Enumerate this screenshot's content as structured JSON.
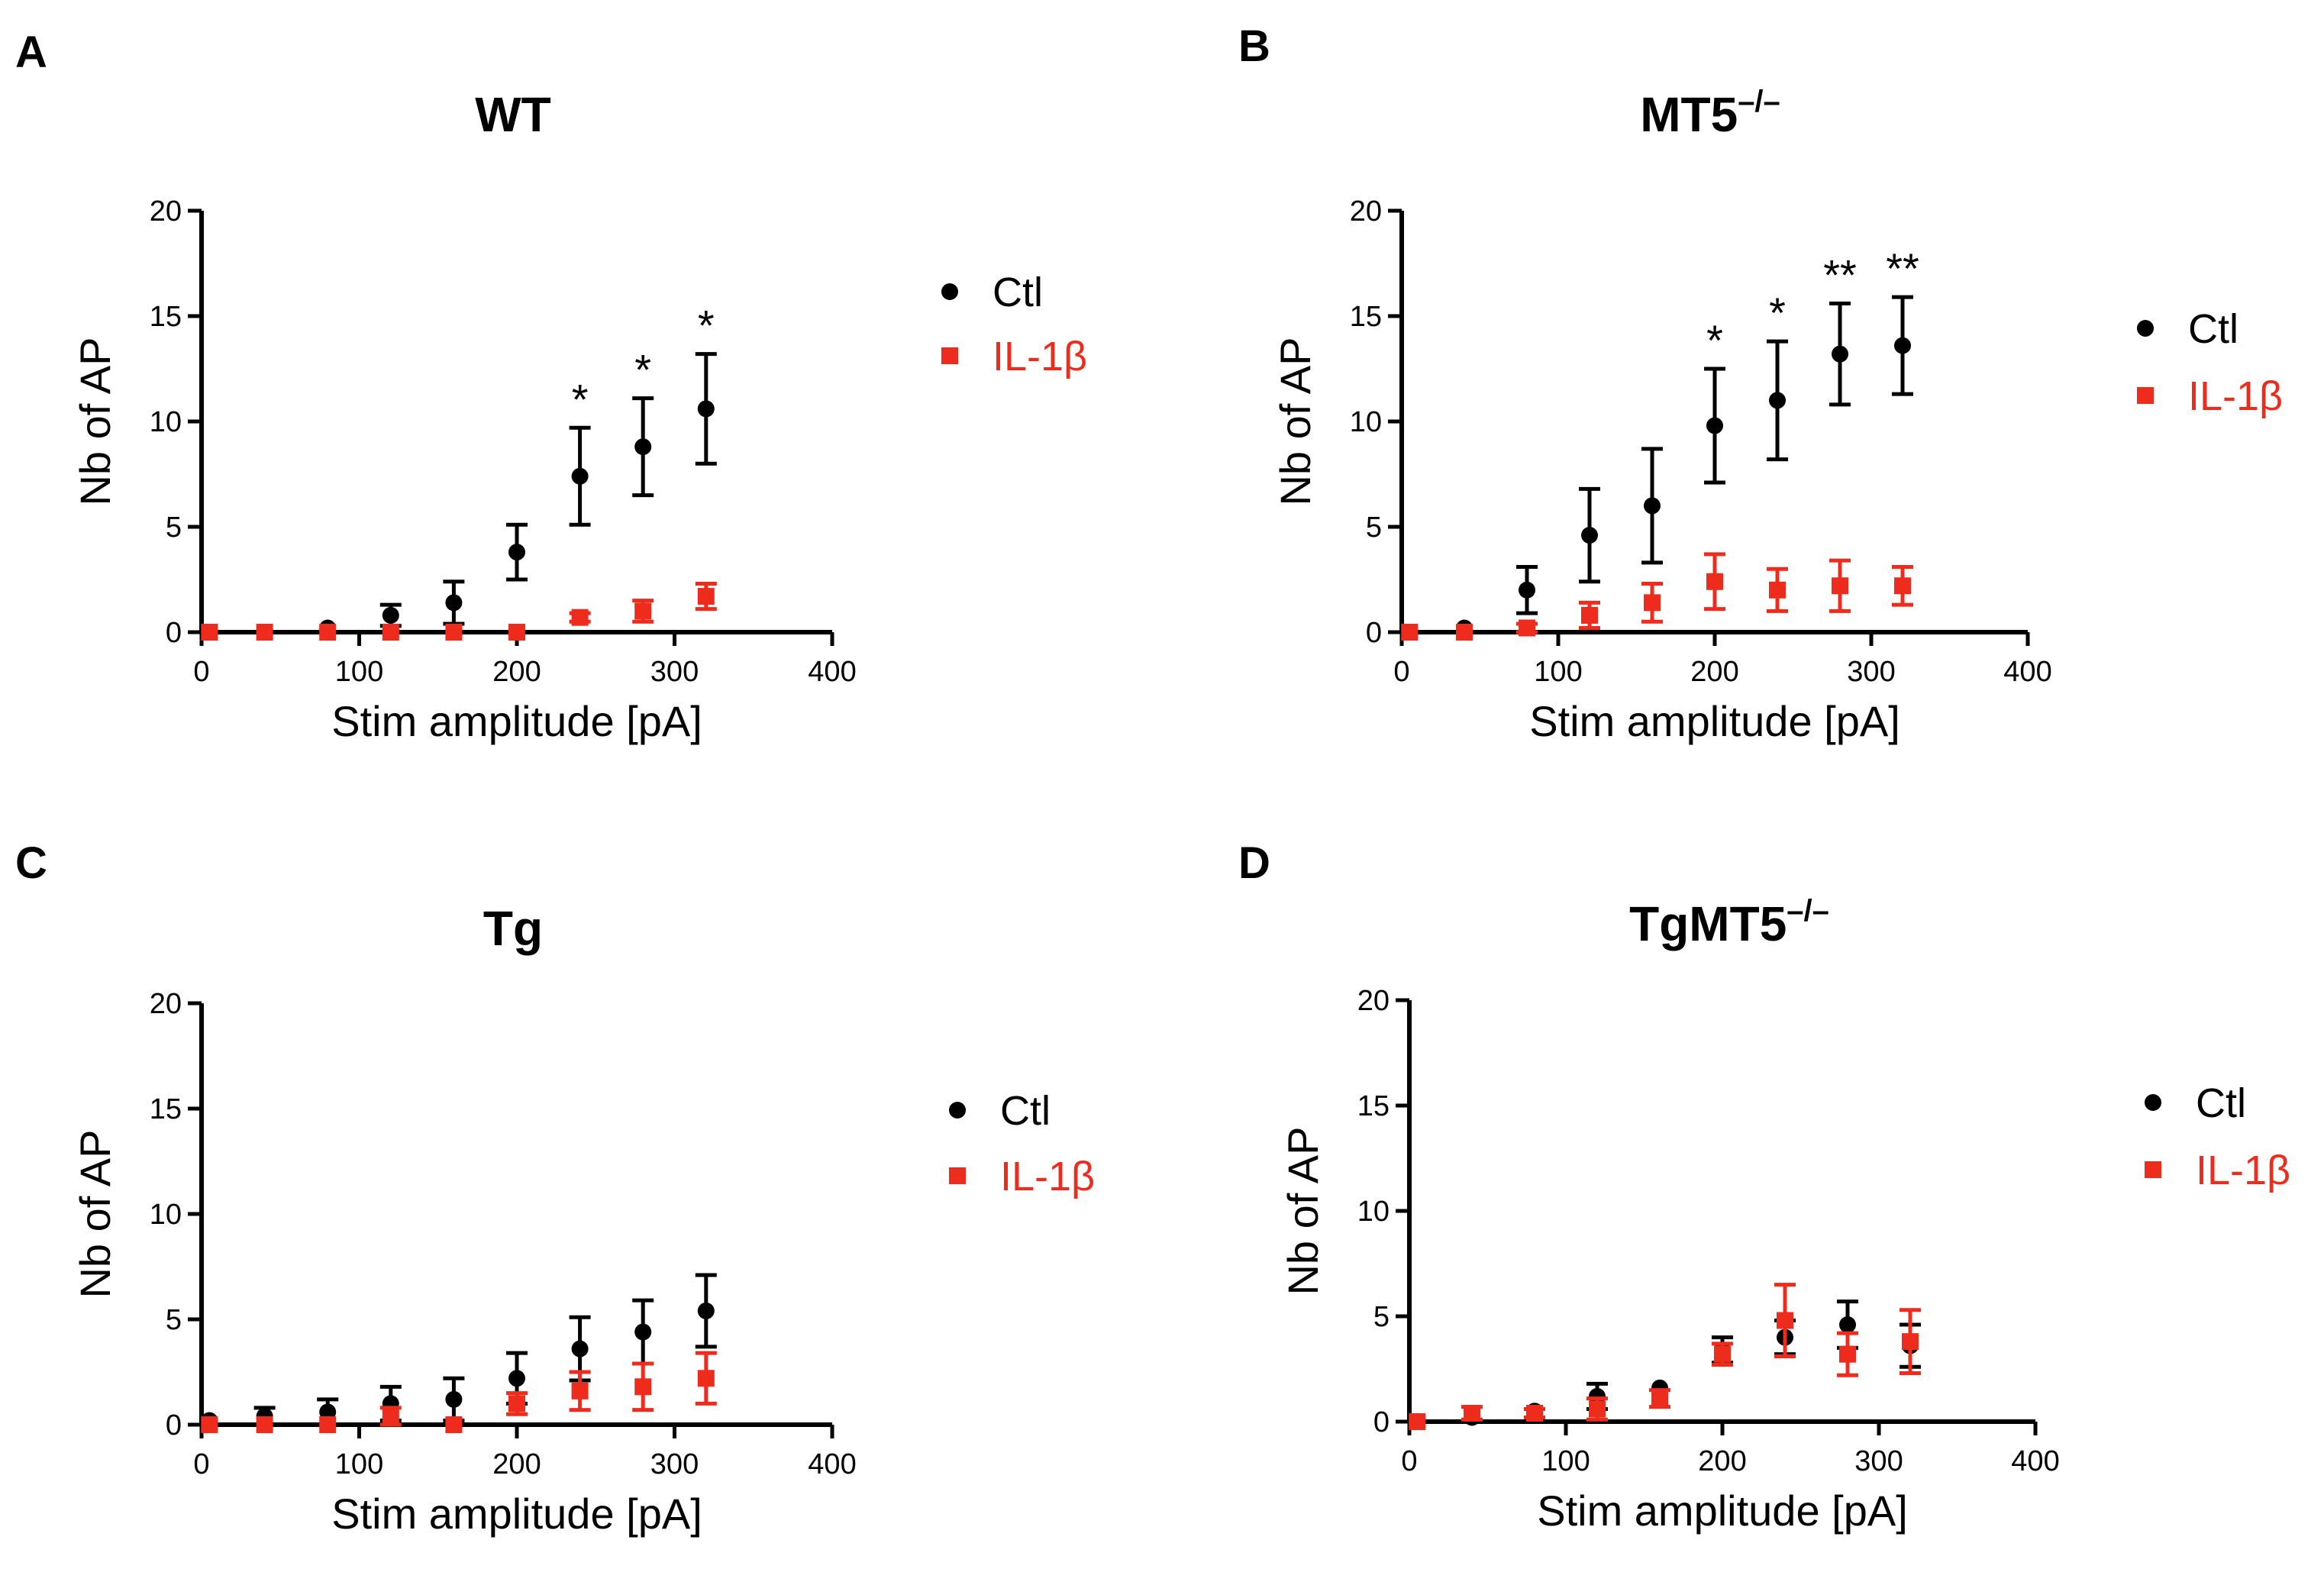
{
  "colors": {
    "ctl": "#000000",
    "il1b": "#ee2c1d"
  },
  "chart_data": [
    {
      "panel_label": "A",
      "type": "scatter",
      "title": "WT",
      "title_superscript": "",
      "xlabel": "Stim amplitude [pA]",
      "ylabel": "Nb of AP",
      "xlim": [
        0,
        400
      ],
      "ylim": [
        0,
        20
      ],
      "xticks": [
        "0",
        "100",
        "200",
        "300",
        "400"
      ],
      "yticks": [
        "0",
        "5",
        "10",
        "15",
        "20"
      ],
      "legend": [
        "Ctl",
        "IL-1β"
      ],
      "legend_position": "right",
      "series": [
        {
          "name": "Ctl",
          "marker": "circle",
          "x": [
            5,
            40,
            80,
            120,
            160,
            200,
            240,
            280,
            320
          ],
          "y": [
            0,
            0,
            0.2,
            0.8,
            1.4,
            3.8,
            7.4,
            8.8,
            10.6
          ],
          "err": [
            0,
            0,
            0,
            0.5,
            1.0,
            1.3,
            2.3,
            2.3,
            2.6
          ]
        },
        {
          "name": "IL-1β",
          "marker": "square",
          "x": [
            5,
            40,
            80,
            120,
            160,
            200,
            240,
            280,
            320
          ],
          "y": [
            0,
            0,
            0,
            0,
            0,
            0,
            0.7,
            1.0,
            1.7
          ],
          "err": [
            0,
            0,
            0,
            0,
            0,
            0,
            0.2,
            0.5,
            0.6
          ]
        }
      ],
      "annotations": [
        {
          "x": 240,
          "text": "*"
        },
        {
          "x": 280,
          "text": "*"
        },
        {
          "x": 320,
          "text": "*"
        }
      ]
    },
    {
      "panel_label": "B",
      "type": "scatter",
      "title": "MT5",
      "title_superscript": "–/–",
      "xlabel": "Stim amplitude [pA]",
      "ylabel": "Nb of AP",
      "xlim": [
        0,
        400
      ],
      "ylim": [
        0,
        20
      ],
      "xticks": [
        "0",
        "100",
        "200",
        "300",
        "400"
      ],
      "yticks": [
        "0",
        "5",
        "10",
        "15",
        "20"
      ],
      "legend": [
        "Ctl",
        "IL-1β"
      ],
      "legend_position": "right",
      "series": [
        {
          "name": "Ctl",
          "marker": "circle",
          "x": [
            5,
            40,
            80,
            120,
            160,
            200,
            240,
            280,
            320
          ],
          "y": [
            0,
            0.2,
            2.0,
            4.6,
            6.0,
            9.8,
            11.0,
            13.2,
            13.6
          ],
          "err": [
            0,
            0,
            1.1,
            2.2,
            2.7,
            2.7,
            2.8,
            2.4,
            2.3
          ]
        },
        {
          "name": "IL-1β",
          "marker": "square",
          "x": [
            5,
            40,
            80,
            120,
            160,
            200,
            240,
            280,
            320
          ],
          "y": [
            0,
            0,
            0.2,
            0.8,
            1.4,
            2.4,
            2.0,
            2.2,
            2.2
          ],
          "err": [
            0,
            0,
            0.2,
            0.6,
            0.9,
            1.3,
            1.0,
            1.2,
            0.9
          ]
        }
      ],
      "annotations": [
        {
          "x": 200,
          "text": "*"
        },
        {
          "x": 240,
          "text": "*"
        },
        {
          "x": 280,
          "text": "**"
        },
        {
          "x": 320,
          "text": "**"
        }
      ]
    },
    {
      "panel_label": "C",
      "type": "scatter",
      "title": "Tg",
      "title_superscript": "",
      "xlabel": "Stim amplitude [pA]",
      "ylabel": "Nb of AP",
      "xlim": [
        0,
        400
      ],
      "ylim": [
        0,
        20
      ],
      "xticks": [
        "0",
        "100",
        "200",
        "300",
        "400"
      ],
      "yticks": [
        "0",
        "5",
        "10",
        "15",
        "20"
      ],
      "legend": [
        "Ctl",
        "IL-1β"
      ],
      "legend_position": "right",
      "series": [
        {
          "name": "Ctl",
          "marker": "circle",
          "x": [
            5,
            40,
            80,
            120,
            160,
            200,
            240,
            280,
            320
          ],
          "y": [
            0.2,
            0.4,
            0.6,
            1.0,
            1.2,
            2.2,
            3.6,
            4.4,
            5.4
          ],
          "err": [
            0,
            0.4,
            0.6,
            0.8,
            1.0,
            1.2,
            1.5,
            1.5,
            1.7
          ]
        },
        {
          "name": "IL-1β",
          "marker": "square",
          "x": [
            5,
            40,
            80,
            120,
            160,
            200,
            240,
            280,
            320
          ],
          "y": [
            0,
            0,
            0,
            0.4,
            0,
            1.0,
            1.6,
            1.8,
            2.2
          ],
          "err": [
            0,
            0,
            0,
            0.4,
            0,
            0.5,
            0.9,
            1.1,
            1.2
          ]
        }
      ],
      "annotations": []
    },
    {
      "panel_label": "D",
      "type": "scatter",
      "title": "TgMT5",
      "title_superscript": "–/–",
      "xlabel": "Stim amplitude [pA]",
      "ylabel": "Nb of AP",
      "xlim": [
        0,
        400
      ],
      "ylim": [
        0,
        20
      ],
      "xticks": [
        "0",
        "100",
        "200",
        "300",
        "400"
      ],
      "yticks": [
        "0",
        "5",
        "10",
        "15",
        "20"
      ],
      "legend": [
        "Ctl",
        "IL-1β"
      ],
      "legend_position": "right",
      "series": [
        {
          "name": "Ctl",
          "marker": "circle",
          "x": [
            5,
            40,
            80,
            120,
            160,
            200,
            240,
            280,
            320
          ],
          "y": [
            0,
            0.2,
            0.5,
            1.2,
            1.6,
            3.4,
            4.0,
            4.6,
            3.6
          ],
          "err": [
            0,
            0,
            0,
            0.6,
            0,
            0.6,
            0.8,
            1.1,
            1.0
          ]
        },
        {
          "name": "IL-1β",
          "marker": "square",
          "x": [
            5,
            40,
            80,
            120,
            160,
            200,
            240,
            280,
            320
          ],
          "y": [
            0,
            0.4,
            0.4,
            0.6,
            1.1,
            3.2,
            4.8,
            3.2,
            3.8
          ],
          "err": [
            0,
            0.3,
            0.2,
            0.5,
            0.4,
            0.5,
            1.7,
            1.0,
            1.5
          ]
        }
      ],
      "annotations": []
    }
  ]
}
